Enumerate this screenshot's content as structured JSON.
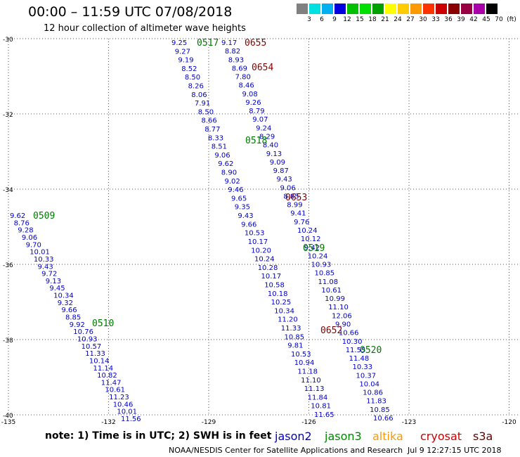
{
  "header": {
    "title": "00:00 – 11:59 UTC 07/08/2018",
    "subtitle": "12 hour collection of altimeter wave heights"
  },
  "axis": {
    "lon_labels": [
      "-135",
      "-132",
      "-129",
      "-126",
      "-123",
      "-120"
    ],
    "lat_labels": [
      "-30",
      "-32",
      "-34",
      "-36",
      "-38",
      "-40"
    ],
    "lon_min": -135,
    "lon_max": -120,
    "lat_min": -40,
    "lat_max": -30
  },
  "colorbar": {
    "labels": [
      "3",
      "6",
      "9",
      "12",
      "15",
      "18",
      "21",
      "24",
      "27",
      "30",
      "33",
      "36",
      "39",
      "42",
      "45",
      "70"
    ],
    "unit": "(ft)",
    "colors": [
      "#808080",
      "#00e0e0",
      "#00b0f0",
      "#0000e0",
      "#00c000",
      "#00e000",
      "#00a000",
      "#ffff00",
      "#ffcc00",
      "#ff9900",
      "#ff3300",
      "#cc0000",
      "#880000",
      "#990044",
      "#aa00aa",
      "#000000"
    ]
  },
  "passes": [
    {
      "time": "0655",
      "color": "#880000"
    },
    {
      "time": "0654",
      "color": "#880000"
    },
    {
      "time": "0517",
      "color": "#007700"
    },
    {
      "time": "0518",
      "color": "#007700"
    },
    {
      "time": "0653",
      "color": "#880000"
    },
    {
      "time": "0509",
      "color": "#007700"
    },
    {
      "time": "0519",
      "color": "#007700"
    },
    {
      "time": "0510",
      "color": "#007700"
    },
    {
      "time": "0652",
      "color": "#880000"
    },
    {
      "time": "0520",
      "color": "#007700"
    }
  ],
  "tracks": [
    {
      "color": "#0000cc",
      "values": [
        "9.25",
        "9.27",
        "9.19",
        "8.52",
        "8.50",
        "8.26",
        "8.06",
        "7.91",
        "8.50",
        "8.66",
        "8.77",
        "8.33",
        "8.51",
        "9.06",
        "9.62",
        "8.90",
        "9.02",
        "9.46",
        "9.65",
        "9.35",
        "9.43",
        "9.66",
        "10.53",
        "10.17",
        "10.20",
        "10.24",
        "10.28",
        "10.17",
        "10.58",
        "10.18",
        "10.25",
        "10.34",
        "11.20",
        "11.33",
        "10.85",
        "9.81",
        "10.53",
        "10.94",
        "11.18",
        "11.10",
        "11.13",
        "11.84",
        "10.81",
        "11.65"
      ]
    },
    {
      "color": "#0000cc",
      "values": [
        "9.17",
        "8.82",
        "8.93",
        "8.69",
        "7.80",
        "8.46",
        "9.08",
        "9.26",
        "8.79",
        "9.07",
        "9.24",
        "8.29",
        "8.40",
        "9.13",
        "9.09",
        "9.87",
        "9.43",
        "9.06",
        "8.85",
        "8.99",
        "9.41",
        "9.76",
        "10.24",
        "10.12",
        "9.42",
        "10.24",
        "10.93",
        "10.85",
        "11.08",
        "10.61",
        "10.99",
        "11.10",
        "12.06",
        "9.90",
        "10.66",
        "10.30",
        "11.55",
        "11.48",
        "10.33",
        "10.37",
        "10.04",
        "10.86",
        "11.83",
        "10.85",
        "10.66"
      ]
    },
    {
      "color": "#0000cc",
      "values": [
        "9.62",
        "8.76",
        "9.28",
        "9.06",
        "9.70",
        "10.01",
        "10.33",
        "9.43",
        "9.72",
        "9.13",
        "9.45",
        "10.34",
        "9.32",
        "9.66",
        "8.85",
        "9.92",
        "10.76",
        "10.93",
        "10.57",
        "11.33",
        "10.14",
        "11.14",
        "10.82",
        "11.47",
        "10.61",
        "11.23",
        "10.46",
        "10.01",
        "11.56"
      ]
    }
  ],
  "note": "note: 1) Time is in UTC; 2) SWH is in feet",
  "legend": {
    "jason2": "jason2",
    "jason3": "jason3",
    "altika": "altika",
    "cryosat": "cryosat",
    "s3a": "s3a"
  },
  "credit": "NOAA/NESDIS Center for Satellite Applications and Research",
  "timestamp": "Jul  9 12:27:15 UTC 2018"
}
